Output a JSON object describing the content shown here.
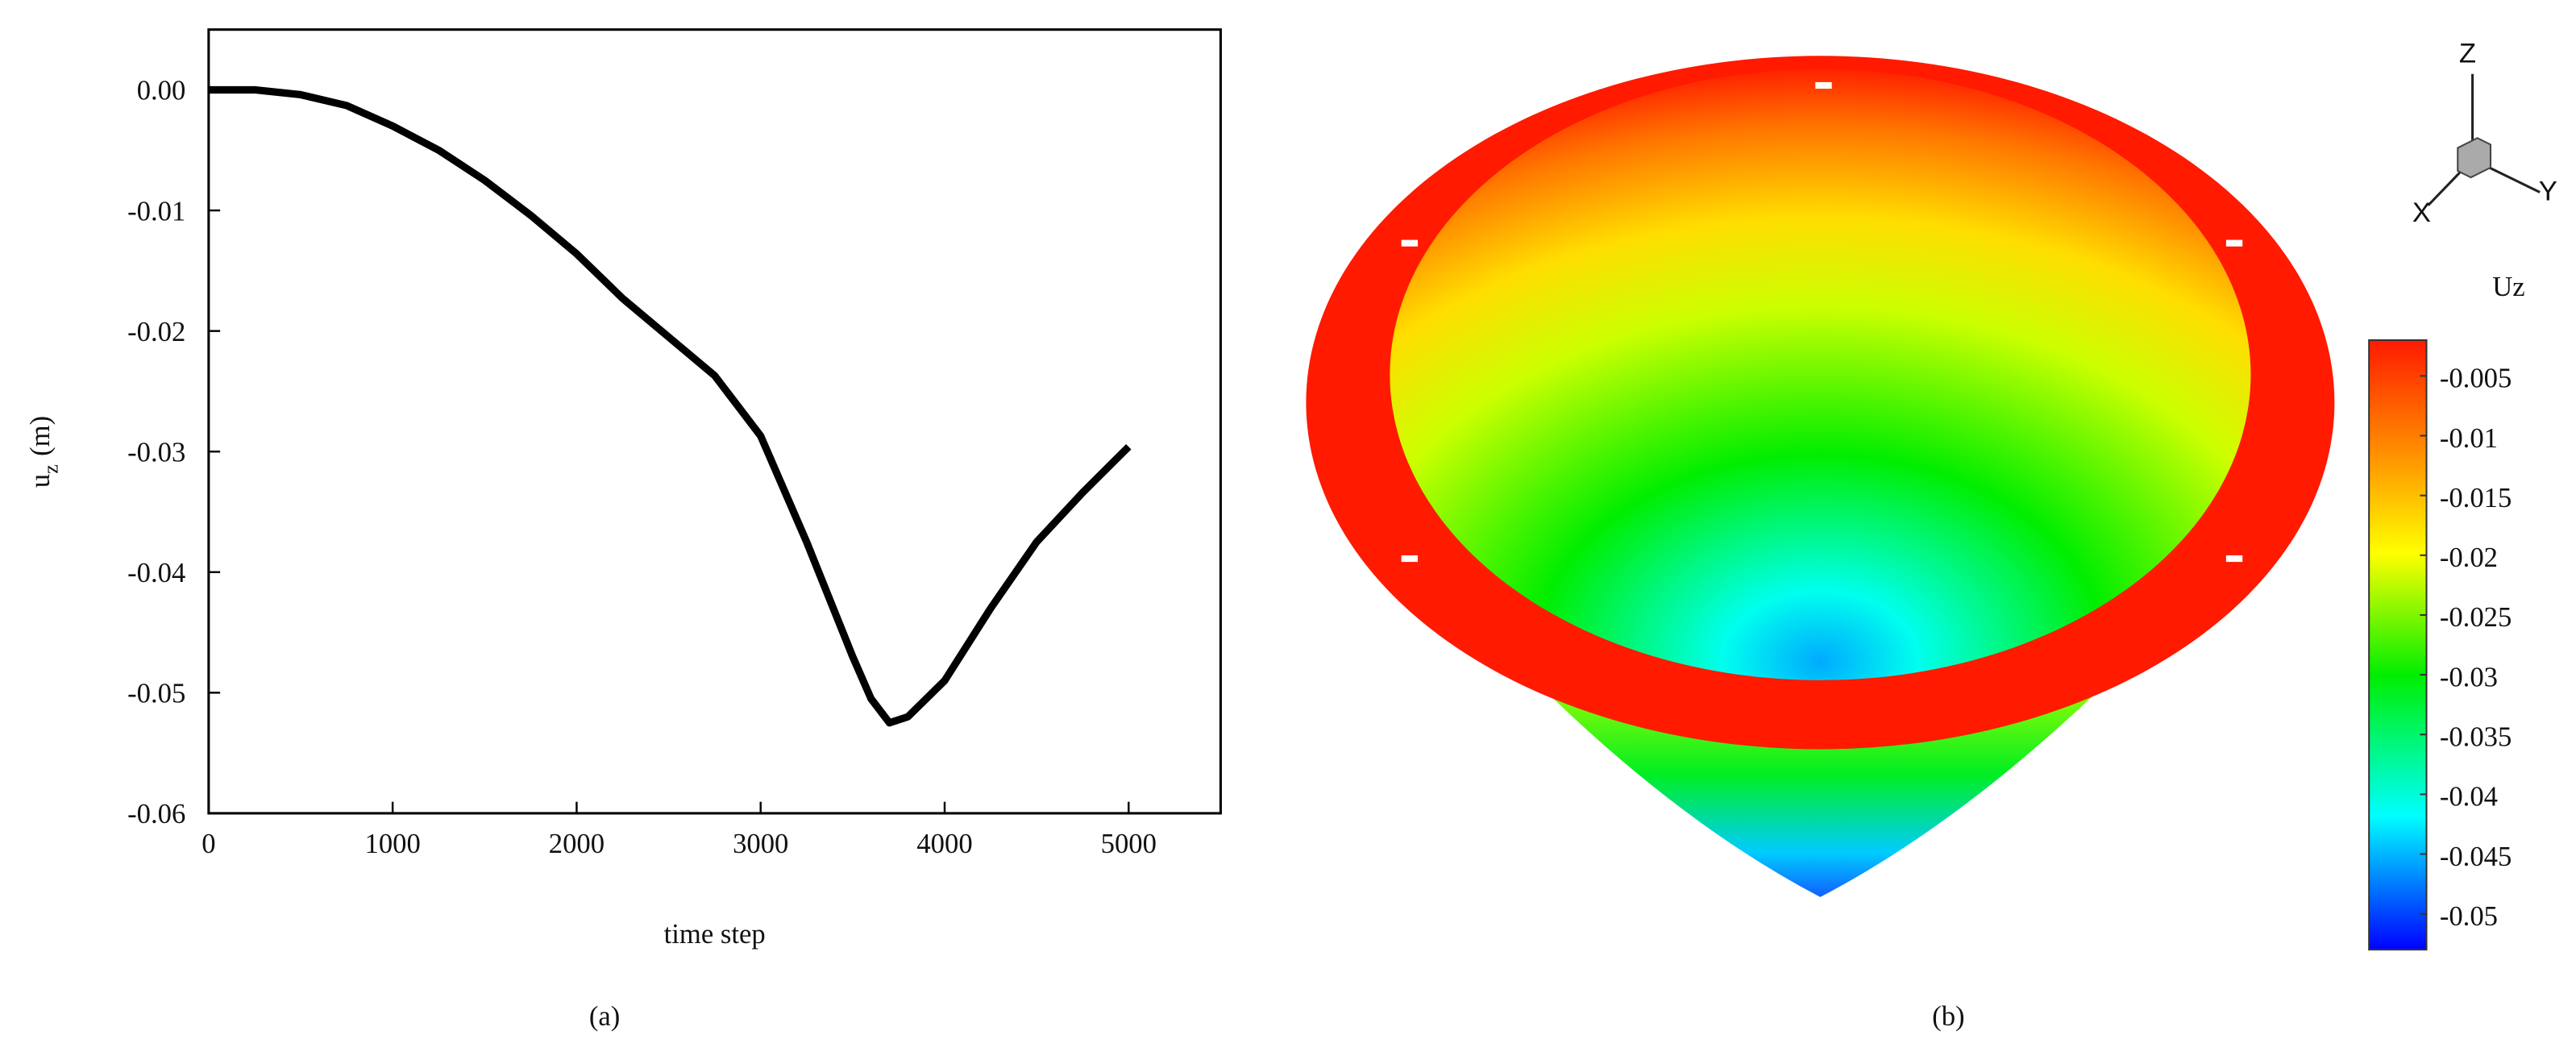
{
  "chart_data": [
    {
      "type": "line",
      "panel_label": "(a)",
      "x_label": "time step",
      "y_label": "u",
      "y_label_sub": "z",
      "y_label_unit": "(m)",
      "x": [
        0,
        250,
        500,
        750,
        1000,
        1250,
        1500,
        1750,
        2000,
        2250,
        2500,
        2750,
        3000,
        3250,
        3500,
        3600,
        3700,
        3800,
        4000,
        4250,
        4500,
        4750,
        5000
      ],
      "values": [
        0,
        0,
        -0.0004,
        -0.0013,
        -0.003,
        -0.005,
        -0.0075,
        -0.0104,
        -0.0136,
        -0.0173,
        -0.0205,
        -0.0237,
        -0.0287,
        -0.0375,
        -0.047,
        -0.0505,
        -0.0525,
        -0.052,
        -0.049,
        -0.043,
        -0.0375,
        -0.0334,
        -0.0296
      ],
      "color": "#000000",
      "xlim": [
        0,
        5500
      ],
      "xticks": [
        0,
        1000,
        2000,
        3000,
        4000,
        5000
      ],
      "ylim": [
        -0.06,
        0.005
      ],
      "yticks": [
        {
          "value": 0,
          "label": "0.00"
        },
        -0.01,
        -0.02,
        -0.03,
        -0.04,
        -0.05,
        -0.06
      ]
    },
    {
      "type": "surface",
      "panel_label": "(b)",
      "colorbar_title": "Uz",
      "axis_labels": [
        "Z",
        "X",
        "Y"
      ],
      "clim": [
        -0.053,
        -0.002
      ],
      "colorbar_ticks": [
        -0.005,
        -0.01,
        -0.015,
        -0.02,
        -0.025,
        -0.03,
        -0.035,
        -0.04,
        -0.045,
        -0.05
      ]
    }
  ]
}
